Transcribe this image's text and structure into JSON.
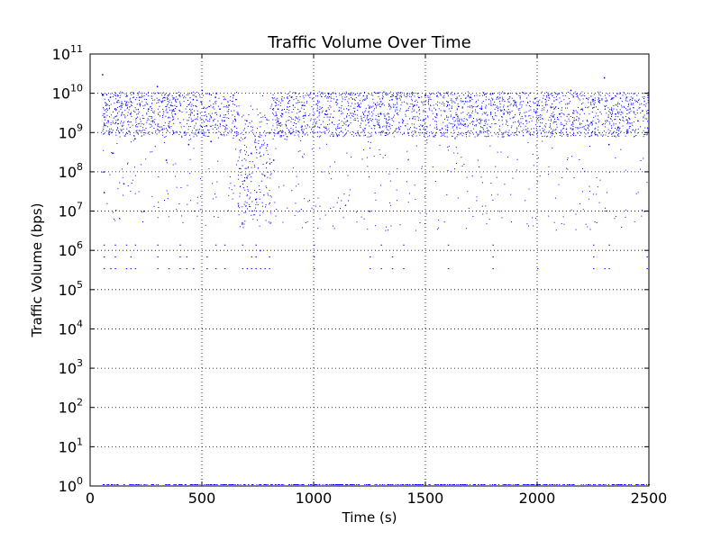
{
  "chart_data": {
    "type": "scatter",
    "title": "Traffic Volume Over Time",
    "xlabel": "Time (s)",
    "ylabel": "Traffic Volume (bps)",
    "xlim": [
      0,
      2500
    ],
    "ylim": [
      1,
      100000000000
    ],
    "yscale": "log",
    "grid": true,
    "x_ticks": [
      0,
      500,
      1000,
      1500,
      2000,
      2500
    ],
    "x_tick_labels": [
      "0",
      "500",
      "1000",
      "1500",
      "2000",
      "2500"
    ],
    "y_ticks": [
      1,
      10,
      100,
      1000,
      10000,
      100000,
      1000000,
      10000000,
      100000000,
      1000000000,
      10000000000,
      100000000000
    ],
    "y_tick_base": "10",
    "y_tick_exponents": [
      "0",
      "1",
      "2",
      "3",
      "4",
      "5",
      "6",
      "7",
      "8",
      "9",
      "10",
      "11"
    ],
    "series": [
      {
        "color": "#0000ff",
        "marker": ".",
        "x_range": [
          50,
          2500
        ],
        "typical_range": [
          1000000000,
          10000000000
        ],
        "points": [
          [
            55,
            30000000000
          ],
          [
            60,
            100000000
          ],
          [
            62,
            30000000
          ],
          [
            70,
            5000000000
          ],
          [
            80,
            2000000000
          ],
          [
            90,
            8000000000
          ],
          [
            100,
            300000000
          ],
          [
            110,
            4000000000
          ],
          [
            120,
            6000000000
          ],
          [
            130,
            1000000000
          ],
          [
            150,
            50000000
          ],
          [
            160,
            5000000000
          ],
          [
            180,
            3000000000
          ],
          [
            200,
            700000000
          ],
          [
            220,
            8000000000
          ],
          [
            240,
            10000000
          ],
          [
            260,
            4000000000
          ],
          [
            280,
            2000000000
          ],
          [
            300,
            15000000000
          ],
          [
            320,
            6000000000
          ],
          [
            340,
            200000000
          ],
          [
            360,
            5000000000
          ],
          [
            380,
            3000000000
          ],
          [
            400,
            9000000000
          ],
          [
            420,
            1000000000
          ],
          [
            440,
            500000000
          ],
          [
            460,
            7000000000
          ],
          [
            480,
            3000000000
          ],
          [
            500,
            12000000000
          ],
          [
            520,
            1500000000
          ],
          [
            540,
            600000000
          ],
          [
            560,
            8000000000
          ],
          [
            580,
            4000000000
          ],
          [
            600,
            2000000000
          ],
          [
            620,
            5000000000
          ],
          [
            640,
            9000000000
          ],
          [
            660,
            3000000000
          ],
          [
            680,
            5000000
          ],
          [
            690,
            60000000
          ],
          [
            700,
            2000000000
          ],
          [
            720,
            300000000
          ],
          [
            740,
            20000000
          ],
          [
            760,
            1000000
          ],
          [
            780,
            80000000
          ],
          [
            800,
            1000000000
          ],
          [
            820,
            200000000
          ],
          [
            840,
            4000000000
          ],
          [
            860,
            3000000000
          ],
          [
            900,
            8000000000
          ],
          [
            950,
            5000000000
          ],
          [
            1000,
            10000000000
          ],
          [
            1050,
            3000000000
          ],
          [
            1100,
            6000000000
          ],
          [
            1150,
            2000000000
          ],
          [
            1200,
            5000000000
          ],
          [
            1250,
            10000000
          ],
          [
            1300,
            3000000000
          ],
          [
            1350,
            7000000000
          ],
          [
            1400,
            2000000000
          ],
          [
            1450,
            5000000000
          ],
          [
            1500,
            9000000000
          ],
          [
            1550,
            3000000000
          ],
          [
            1600,
            6000000000
          ],
          [
            1650,
            2000000000
          ],
          [
            1700,
            8000000000
          ],
          [
            1750,
            4000000000
          ],
          [
            1800,
            10000000000
          ],
          [
            1850,
            3000000000
          ],
          [
            1900,
            6000000000
          ],
          [
            1950,
            2000000000
          ],
          [
            2000,
            5000000000
          ],
          [
            2050,
            9000000000
          ],
          [
            2100,
            3000000000
          ],
          [
            2150,
            12000000000
          ],
          [
            2200,
            4000000000
          ],
          [
            2250,
            7000000000
          ],
          [
            2300,
            25000000000
          ],
          [
            2320,
            500000000
          ],
          [
            2350,
            3000000000
          ],
          [
            2400,
            8000000000
          ],
          [
            2450,
            2000000000
          ],
          [
            2480,
            10000000
          ],
          [
            2495,
            9000000000
          ]
        ],
        "floor_level": 350000,
        "floor_points_x": [
          60,
          90,
          110,
          160,
          180,
          200,
          300,
          350,
          400,
          430,
          460,
          520,
          560,
          600,
          680,
          700,
          720,
          740,
          760,
          780,
          800,
          1000,
          1250,
          1300,
          1350,
          1400,
          1600,
          1800,
          2000,
          2250,
          2300,
          2320,
          2490
        ],
        "baseline_value": 1
      }
    ]
  }
}
